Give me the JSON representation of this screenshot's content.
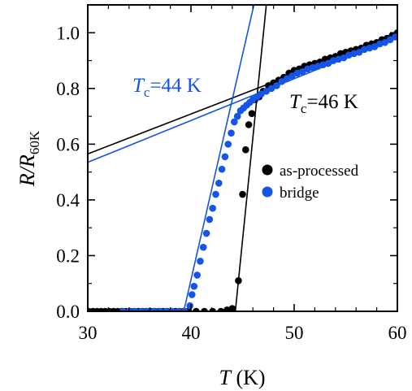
{
  "chart_data": {
    "type": "scatter",
    "xlabel": {
      "var": "T",
      "unit": " (K)"
    },
    "ylabel": {
      "var": "R/R",
      "sub": "60K"
    },
    "xlim": [
      30,
      60
    ],
    "ylim": [
      0.0,
      1.1
    ],
    "xticks": [
      30,
      40,
      50,
      60
    ],
    "xtick_labels": [
      "30",
      "40",
      "50",
      "60"
    ],
    "yticks": [
      0.0,
      0.2,
      0.4,
      0.6,
      0.8,
      1.0
    ],
    "ytick_labels": [
      "0.0",
      "0.2",
      "0.4",
      "0.6",
      "0.8",
      "1.0"
    ],
    "grid": false,
    "legend_position": "right-middle",
    "series": [
      {
        "name": "as-processed",
        "color": "#000000",
        "x": [
          30.1,
          30.5,
          30.9,
          31.3,
          31.7,
          32.1,
          32.5,
          32.9,
          33.3,
          33.7,
          34.1,
          34.5,
          34.9,
          35.3,
          35.7,
          36.1,
          36.5,
          36.9,
          37.3,
          37.7,
          38.1,
          38.5,
          38.9,
          39.3,
          39.7,
          40.5,
          41.3,
          42.1,
          42.9,
          43.5,
          44.0,
          44.6,
          45.0,
          45.3,
          45.6,
          45.9,
          46.2,
          46.6,
          47.0,
          47.5,
          48.0,
          48.5,
          49.0,
          49.5,
          50.0,
          50.5,
          51.0,
          51.5,
          52.0,
          52.5,
          53.0,
          53.5,
          54.0,
          54.5,
          55.0,
          55.5,
          56.0,
          56.5,
          57.0,
          57.5,
          58.0,
          58.5,
          59.0,
          59.5,
          60.0
        ],
        "y": [
          0,
          0,
          0,
          0,
          0,
          0,
          0,
          0,
          0,
          0,
          0,
          0,
          0,
          0,
          0,
          0,
          0,
          0,
          0,
          0,
          0,
          0,
          0,
          0,
          0,
          0,
          0,
          0,
          0,
          0.005,
          0.01,
          0.11,
          0.42,
          0.58,
          0.67,
          0.71,
          0.76,
          0.77,
          0.79,
          0.81,
          0.82,
          0.83,
          0.84,
          0.855,
          0.865,
          0.87,
          0.88,
          0.885,
          0.89,
          0.895,
          0.905,
          0.91,
          0.915,
          0.925,
          0.93,
          0.935,
          0.94,
          0.945,
          0.955,
          0.96,
          0.965,
          0.975,
          0.98,
          0.99,
          1.0
        ]
      },
      {
        "name": "bridge",
        "color": "#1454e6",
        "x": [
          33.4,
          34.0,
          34.6,
          35.2,
          35.8,
          36.4,
          37.0,
          37.6,
          38.2,
          38.8,
          39.4,
          39.9,
          40.1,
          40.3,
          40.6,
          40.9,
          41.2,
          41.5,
          41.8,
          42.1,
          42.4,
          42.7,
          43.0,
          43.3,
          43.6,
          43.9,
          44.2,
          44.5,
          44.8,
          45.1,
          45.4,
          45.7,
          46.0,
          46.4,
          46.8,
          47.3,
          47.8,
          48.3,
          48.8,
          49.3,
          49.8,
          50.3,
          50.8,
          51.3,
          51.8,
          52.3,
          52.8,
          53.3,
          53.8,
          54.3,
          54.8,
          55.3,
          55.8,
          56.3,
          56.8,
          57.3,
          57.8,
          58.3,
          58.8,
          59.3,
          59.8
        ],
        "y": [
          0,
          0,
          0,
          0,
          0,
          0,
          0,
          0,
          0,
          0,
          0,
          0.02,
          0.06,
          0.09,
          0.13,
          0.18,
          0.23,
          0.28,
          0.33,
          0.37,
          0.42,
          0.46,
          0.51,
          0.555,
          0.6,
          0.64,
          0.68,
          0.7,
          0.72,
          0.73,
          0.74,
          0.75,
          0.76,
          0.77,
          0.78,
          0.79,
          0.8,
          0.81,
          0.825,
          0.835,
          0.845,
          0.855,
          0.86,
          0.87,
          0.875,
          0.88,
          0.885,
          0.89,
          0.9,
          0.905,
          0.91,
          0.92,
          0.925,
          0.93,
          0.94,
          0.945,
          0.95,
          0.96,
          0.965,
          0.975,
          0.985
        ]
      }
    ],
    "fit_lines": [
      {
        "series": "as-processed",
        "color": "#000000",
        "x": [
          30,
          60
        ],
        "y": [
          0.565,
          0.995
        ]
      },
      {
        "series": "as-processed",
        "color": "#000000",
        "x": [
          44.3,
          47.3
        ],
        "y": [
          0.0,
          1.1
        ]
      },
      {
        "series": "bridge",
        "color": "#1454e6",
        "x": [
          30,
          60
        ],
        "y": [
          0.535,
          0.985
        ]
      },
      {
        "series": "bridge",
        "color": "#1454e6",
        "x": [
          39.3,
          46.1
        ],
        "y": [
          0.0,
          1.1
        ]
      }
    ],
    "annotations": [
      {
        "var": "T",
        "sub": "c",
        "value": "=46 K",
        "color": "#000000"
      },
      {
        "var": "T",
        "sub": "c",
        "value": "=44 K",
        "color": "#1454e6"
      }
    ]
  }
}
